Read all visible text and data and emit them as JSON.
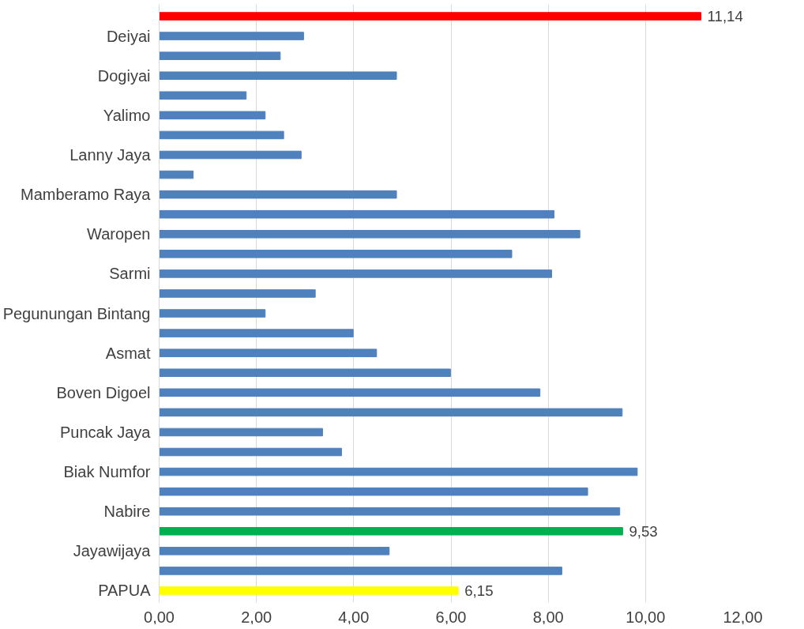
{
  "chart_data": {
    "type": "bar",
    "orientation": "horizontal",
    "categories": [
      null,
      "Deiyai",
      null,
      "Dogiyai",
      null,
      "Yalimo",
      null,
      "Lanny Jaya",
      null,
      "Mamberamo Raya",
      null,
      "Waropen",
      null,
      "Sarmi",
      null,
      "Pegunungan Bintang",
      null,
      "Asmat",
      null,
      "Boven Digoel",
      null,
      "Puncak Jaya",
      null,
      "Biak Numfor",
      null,
      "Nabire",
      null,
      "Jayawijaya",
      null,
      "PAPUA"
    ],
    "values": [
      11.14,
      2.97,
      2.49,
      4.88,
      1.79,
      2.18,
      2.56,
      2.92,
      0.7,
      4.88,
      8.12,
      8.65,
      7.25,
      8.07,
      3.21,
      2.18,
      3.99,
      4.47,
      5.99,
      7.83,
      9.52,
      3.36,
      3.75,
      9.83,
      8.81,
      9.47,
      9.53,
      4.73,
      8.28,
      6.15
    ],
    "colors": [
      "#ff0000",
      "#4f81bd",
      "#4f81bd",
      "#4f81bd",
      "#4f81bd",
      "#4f81bd",
      "#4f81bd",
      "#4f81bd",
      "#4f81bd",
      "#4f81bd",
      "#4f81bd",
      "#4f81bd",
      "#4f81bd",
      "#4f81bd",
      "#4f81bd",
      "#4f81bd",
      "#4f81bd",
      "#4f81bd",
      "#4f81bd",
      "#4f81bd",
      "#4f81bd",
      "#4f81bd",
      "#4f81bd",
      "#4f81bd",
      "#4f81bd",
      "#4f81bd",
      "#00b050",
      "#4f81bd",
      "#4f81bd",
      "#ffff00"
    ],
    "value_labels": [
      "11,14",
      null,
      null,
      null,
      null,
      null,
      null,
      null,
      null,
      null,
      null,
      null,
      null,
      null,
      null,
      null,
      null,
      null,
      null,
      null,
      null,
      null,
      null,
      null,
      null,
      null,
      "9,53",
      null,
      null,
      "6,15"
    ],
    "xlim": [
      0,
      12
    ],
    "xticks": [
      {
        "value": 0,
        "label": "0,00"
      },
      {
        "value": 2,
        "label": "2,00"
      },
      {
        "value": 4,
        "label": "4,00"
      },
      {
        "value": 6,
        "label": "6,00"
      },
      {
        "value": 8,
        "label": "8,00"
      },
      {
        "value": 10,
        "label": "10,00"
      },
      {
        "value": 12,
        "label": "12,00"
      }
    ],
    "grid": "x"
  }
}
